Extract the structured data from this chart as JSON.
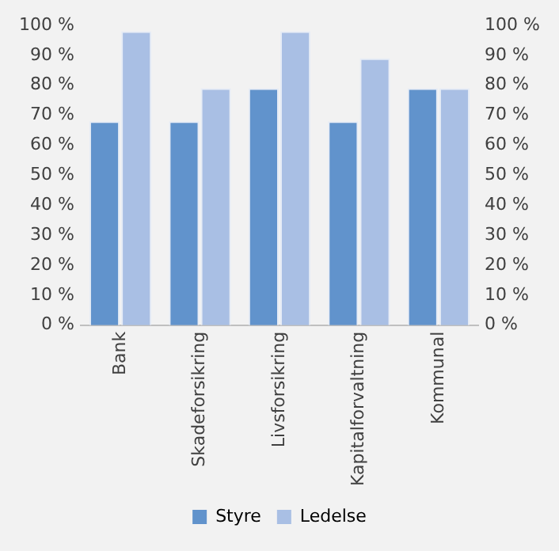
{
  "chart_data": {
    "type": "bar",
    "categories": [
      "Bank",
      "Skadeforsikring",
      "Livsforsikring",
      "Kapitalforvaltning",
      "Kommunal"
    ],
    "series": [
      {
        "name": "Styre",
        "color": "#6193cc",
        "values": [
          68,
          68,
          79,
          68,
          79
        ]
      },
      {
        "name": "Ledelse",
        "color": "#a9bfe4",
        "values": [
          98,
          79,
          98,
          89,
          79
        ]
      }
    ],
    "ylim": [
      0,
      100
    ],
    "yticks": [
      {
        "value": 0,
        "label": "0 %"
      },
      {
        "value": 10,
        "label": "10 %"
      },
      {
        "value": 20,
        "label": "20 %"
      },
      {
        "value": 30,
        "label": "30 %"
      },
      {
        "value": 40,
        "label": "40 %"
      },
      {
        "value": 50,
        "label": "50 %"
      },
      {
        "value": 60,
        "label": "60 %"
      },
      {
        "value": 70,
        "label": "70 %"
      },
      {
        "value": 80,
        "label": "80 %"
      },
      {
        "value": 90,
        "label": "90 %"
      },
      {
        "value": 100,
        "label": "100 %"
      }
    ],
    "y2lim": [
      0,
      100
    ],
    "y2ticks": [
      {
        "value": 0,
        "label": "0 %"
      },
      {
        "value": 10,
        "label": "10 %"
      },
      {
        "value": 20,
        "label": "20 %"
      },
      {
        "value": 30,
        "label": "30 %"
      },
      {
        "value": 40,
        "label": "40 %"
      },
      {
        "value": 50,
        "label": "50 %"
      },
      {
        "value": 60,
        "label": "60 %"
      },
      {
        "value": 70,
        "label": "70 %"
      },
      {
        "value": 80,
        "label": "80 %"
      },
      {
        "value": 90,
        "label": "90 %"
      },
      {
        "value": 100,
        "label": "100 %"
      }
    ],
    "grid": false,
    "legend": "bottom"
  }
}
